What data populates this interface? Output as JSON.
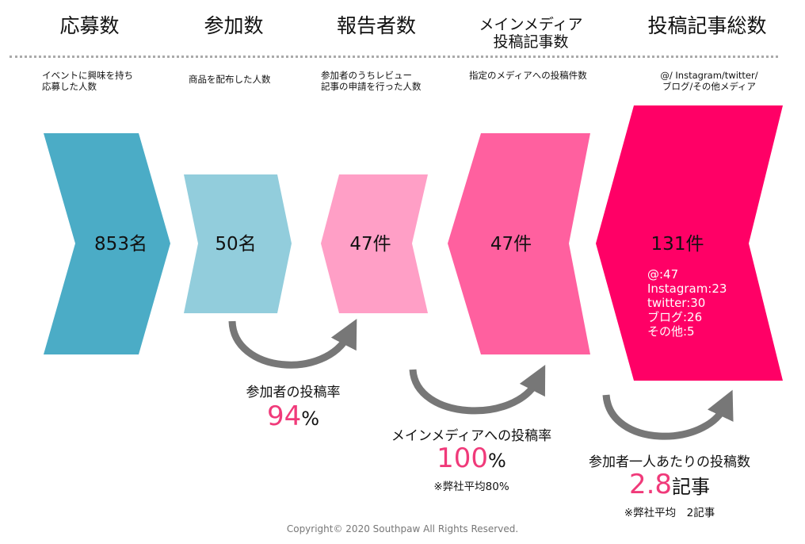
{
  "columns": [
    {
      "title": "応募数",
      "desc": [
        "イベントに興味を持ち",
        "応募した人数"
      ],
      "value": "853名",
      "color": "#4BACC6"
    },
    {
      "title": "参加数",
      "desc": [
        "商品を配布した人数"
      ],
      "value": "50名",
      "color": "#92CDDC"
    },
    {
      "title": "報告者数",
      "desc": [
        "参加者のうちレビュー",
        "記事の申請を行った人数"
      ],
      "value": "47件",
      "color": "#FF9FC6"
    },
    {
      "title": [
        "メインメディア",
        "投稿記事数"
      ],
      "desc": [
        "指定のメディアへの投稿件数"
      ],
      "value": "47件",
      "color": "#FF609F"
    },
    {
      "title": "投稿記事総数",
      "desc": [
        "@/ Instagram/twitter/",
        "ブログ/その他メディア"
      ],
      "value": "131件",
      "color": "#FF0066"
    }
  ],
  "breakdown": [
    "@:47",
    "Instagram:23",
    "twitter:30",
    "ブログ:26",
    "その他:5"
  ],
  "rates": [
    {
      "label": "参加者の投稿率",
      "value": "94",
      "unit": "%"
    },
    {
      "label": "メインメディアへの投稿率",
      "value": "100",
      "unit": "%",
      "note": "※弊社平均80%"
    },
    {
      "label": "参加者一人あたりの投稿数",
      "value": "2.8",
      "unit": "記事",
      "note": "※弊社平均　2記事"
    }
  ],
  "footer": "Copyright© 2020 Southpaw All Rights Reserved."
}
